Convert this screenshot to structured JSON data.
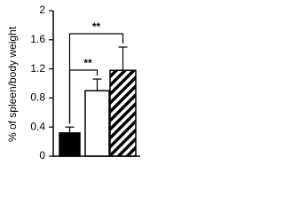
{
  "chart_data": {
    "type": "bar",
    "y_label": "% of spleen/body weight",
    "categories": [
      null,
      null,
      null
    ],
    "values": [
      0.32,
      0.9,
      1.18
    ],
    "errors": [
      0.08,
      0.16,
      0.32
    ],
    "colors": [
      "#000000",
      "#ffffff",
      "#ffffff"
    ],
    "hatch": [
      false,
      false,
      true
    ],
    "ylim": [
      0,
      2
    ],
    "yticks": [
      0,
      0.4,
      0.8,
      1.2,
      1.6,
      2
    ],
    "annotations": [
      {
        "text": "**",
        "from": 0,
        "to": 1
      },
      {
        "text": "**",
        "from": 0,
        "to": 2
      }
    ]
  }
}
